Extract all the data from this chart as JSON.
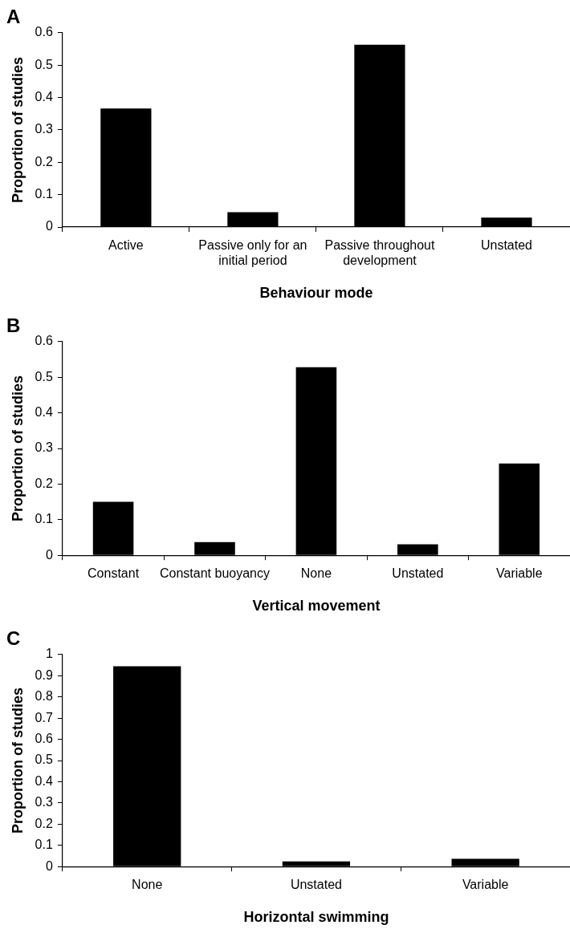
{
  "chart_data": [
    {
      "type": "bar",
      "title": "A",
      "xlabel": "Behaviour mode",
      "ylabel": "Proportion of studies",
      "categories": [
        "Active",
        "Passive only for an initial period",
        "Passive throughout development",
        "Unstated"
      ],
      "values": [
        0.366,
        0.046,
        0.563,
        0.029
      ],
      "color": "#000000",
      "ylim": [
        0,
        0.6
      ],
      "yticks": [
        0,
        0.1,
        0.2,
        0.3,
        0.4,
        0.5,
        0.6
      ],
      "grid": false,
      "legend": false
    },
    {
      "type": "bar",
      "title": "B",
      "xlabel": "Vertical movement",
      "ylabel": "Proportion of studies",
      "categories": [
        "Constant",
        "Constant buoyancy",
        "None",
        "Unstated",
        "Variable"
      ],
      "values": [
        0.15,
        0.037,
        0.528,
        0.031,
        0.258
      ],
      "color": "#000000",
      "ylim": [
        0,
        0.6
      ],
      "yticks": [
        0,
        0.1,
        0.2,
        0.3,
        0.4,
        0.5,
        0.6
      ],
      "grid": false,
      "legend": false
    },
    {
      "type": "bar",
      "title": "C",
      "xlabel": "Horizontal swimming",
      "ylabel": "Proportion of studies",
      "categories": [
        "None",
        "Unstated",
        "Variable"
      ],
      "values": [
        0.944,
        0.024,
        0.037
      ],
      "color": "#000000",
      "ylim": [
        0,
        1
      ],
      "yticks": [
        0,
        0.1,
        0.2,
        0.3,
        0.4,
        0.5,
        0.6,
        0.7,
        0.8,
        0.9,
        1
      ],
      "grid": false,
      "legend": false
    }
  ]
}
